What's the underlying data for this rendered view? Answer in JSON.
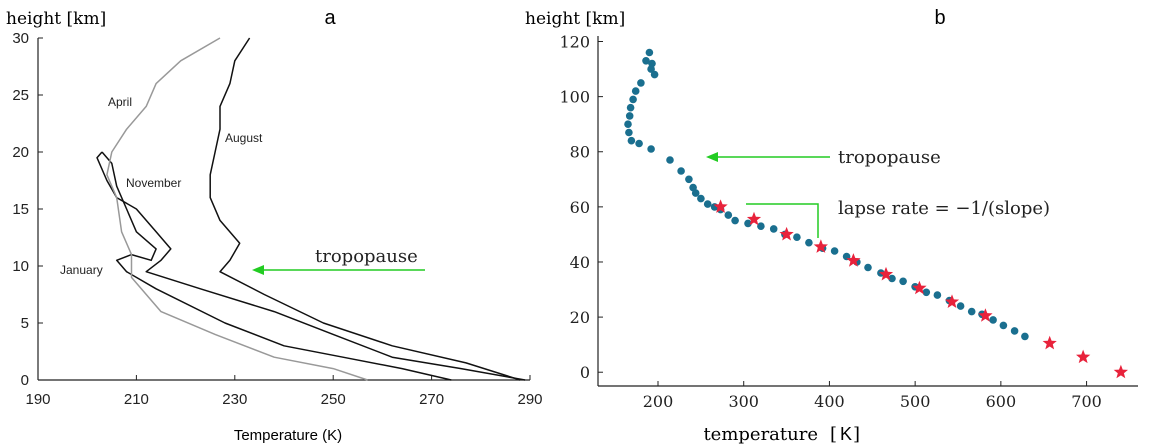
{
  "chart_data": [
    {
      "type": "line",
      "panel_label": "a",
      "xlabel": "Temperature (K)",
      "ylabel": "height [km]",
      "xlim": [
        190,
        290
      ],
      "ylim": [
        0,
        30
      ],
      "x_ticks": [
        190,
        210,
        230,
        250,
        270,
        290
      ],
      "y_ticks": [
        0,
        5,
        10,
        15,
        20,
        25,
        30
      ],
      "annotation": {
        "text": "tropopause",
        "arrow_tip": [
          232,
          10
        ],
        "color": "#22cc22"
      },
      "series": [
        {
          "name": "January",
          "color": "#111111",
          "points": [
            [
              274,
              0
            ],
            [
              264,
              1
            ],
            [
              252,
              2
            ],
            [
              240,
              3
            ],
            [
              228,
              5
            ],
            [
              214,
              8
            ],
            [
              208,
              9.5
            ],
            [
              206,
              10.5
            ],
            [
              209,
              11
            ],
            [
              213,
              10.5
            ],
            [
              214,
              11.5
            ],
            [
              210,
              13
            ],
            [
              208,
              15
            ],
            [
              206,
              17
            ],
            [
              205,
              19
            ],
            [
              203,
              20
            ]
          ]
        },
        {
          "name": "November",
          "color": "#111111",
          "points": [
            [
              289,
              0
            ],
            [
              276,
              1
            ],
            [
              262,
              2
            ],
            [
              250,
              4
            ],
            [
              238,
              6
            ],
            [
              223,
              8
            ],
            [
              212,
              9.5
            ],
            [
              215,
              10.5
            ],
            [
              217,
              11.5
            ],
            [
              214,
              13
            ],
            [
              210,
              15
            ],
            [
              206,
              16
            ],
            [
              204,
              17.5
            ],
            [
              202,
              19.5
            ],
            [
              203,
              20
            ]
          ]
        },
        {
          "name": "April",
          "color": "#999999",
          "points": [
            [
              257,
              0
            ],
            [
              250,
              1
            ],
            [
              238,
              2
            ],
            [
              226,
              4
            ],
            [
              215,
              6
            ],
            [
              209,
              9
            ],
            [
              209,
              11
            ],
            [
              207,
              13
            ],
            [
              206,
              16
            ],
            [
              204,
              18
            ],
            [
              205,
              20
            ],
            [
              208,
              22
            ],
            [
              212,
              24
            ],
            [
              214,
              26
            ],
            [
              219,
              28
            ],
            [
              227,
              30
            ]
          ]
        },
        {
          "name": "August",
          "color": "#111111",
          "points": [
            [
              288,
              0
            ],
            [
              277,
              1.5
            ],
            [
              262,
              3
            ],
            [
              248,
              5
            ],
            [
              236,
              7.5
            ],
            [
              227,
              9.5
            ],
            [
              229,
              10.5
            ],
            [
              231,
              12
            ],
            [
              227,
              14
            ],
            [
              225,
              16
            ],
            [
              225,
              18
            ],
            [
              226,
              20
            ],
            [
              227,
              22
            ],
            [
              227,
              24
            ],
            [
              229,
              26
            ],
            [
              230,
              28
            ],
            [
              233,
              30
            ]
          ]
        }
      ]
    },
    {
      "type": "scatter",
      "panel_label": "b",
      "xlabel": "temperature",
      "xlabel_unit": "K",
      "ylabel": "height [km]",
      "xlim": [
        130,
        760
      ],
      "ylim": [
        -5,
        122
      ],
      "x_ticks": [
        200,
        300,
        400,
        500,
        600,
        700
      ],
      "y_ticks": [
        0,
        20,
        40,
        60,
        80,
        100,
        120
      ],
      "annotations": [
        {
          "text": "tropopause",
          "arrow_tip": [
            240,
            79
          ],
          "color": "#22cc22"
        },
        {
          "text": "lapse rate = −1/(slope)",
          "color": "#22cc22"
        }
      ],
      "series": [
        {
          "name": "",
          "marker": "circle",
          "color": "#1a6f8f",
          "points": [
            [
              190,
              116
            ],
            [
              186,
              113
            ],
            [
              193,
              112
            ],
            [
              192,
              110
            ],
            [
              196,
              108
            ],
            [
              180,
              105
            ],
            [
              174,
              102
            ],
            [
              171,
              99
            ],
            [
              168,
              96
            ],
            [
              167,
              93
            ],
            [
              165,
              90
            ],
            [
              166,
              87
            ],
            [
              169,
              84
            ],
            [
              178,
              83
            ],
            [
              192,
              81
            ],
            [
              214,
              77
            ],
            [
              227,
              73
            ],
            [
              236,
              70
            ],
            [
              241,
              67
            ],
            [
              244,
              65
            ],
            [
              250,
              63
            ],
            [
              258,
              61
            ],
            [
              266,
              60
            ],
            [
              273,
              59
            ],
            [
              282,
              57
            ],
            [
              290,
              55
            ],
            [
              305,
              54
            ],
            [
              320,
              53
            ],
            [
              335,
              52
            ],
            [
              348,
              50
            ],
            [
              362,
              49
            ],
            [
              376,
              47
            ],
            [
              392,
              45
            ],
            [
              406,
              44
            ],
            [
              420,
              42
            ],
            [
              432,
              40
            ],
            [
              445,
              38
            ],
            [
              460,
              36
            ],
            [
              473,
              34
            ],
            [
              486,
              33
            ],
            [
              500,
              31
            ],
            [
              513,
              29
            ],
            [
              526,
              28
            ],
            [
              540,
              26
            ],
            [
              553,
              24
            ],
            [
              566,
              22
            ],
            [
              578,
              21
            ],
            [
              591,
              19
            ],
            [
              603,
              17
            ],
            [
              616,
              15
            ],
            [
              628,
              13
            ]
          ]
        },
        {
          "name": "",
          "marker": "star",
          "color": "#e8223b",
          "points": [
            [
              273,
              60
            ],
            [
              312,
              55.5
            ],
            [
              350,
              50
            ],
            [
              390,
              45.5
            ],
            [
              428,
              40.5
            ],
            [
              466,
              35.5
            ],
            [
              505,
              30.5
            ],
            [
              543,
              25.5
            ],
            [
              582,
              20.5
            ],
            [
              657,
              10.5
            ],
            [
              696,
              5.5
            ],
            [
              740,
              0
            ]
          ]
        }
      ]
    }
  ]
}
